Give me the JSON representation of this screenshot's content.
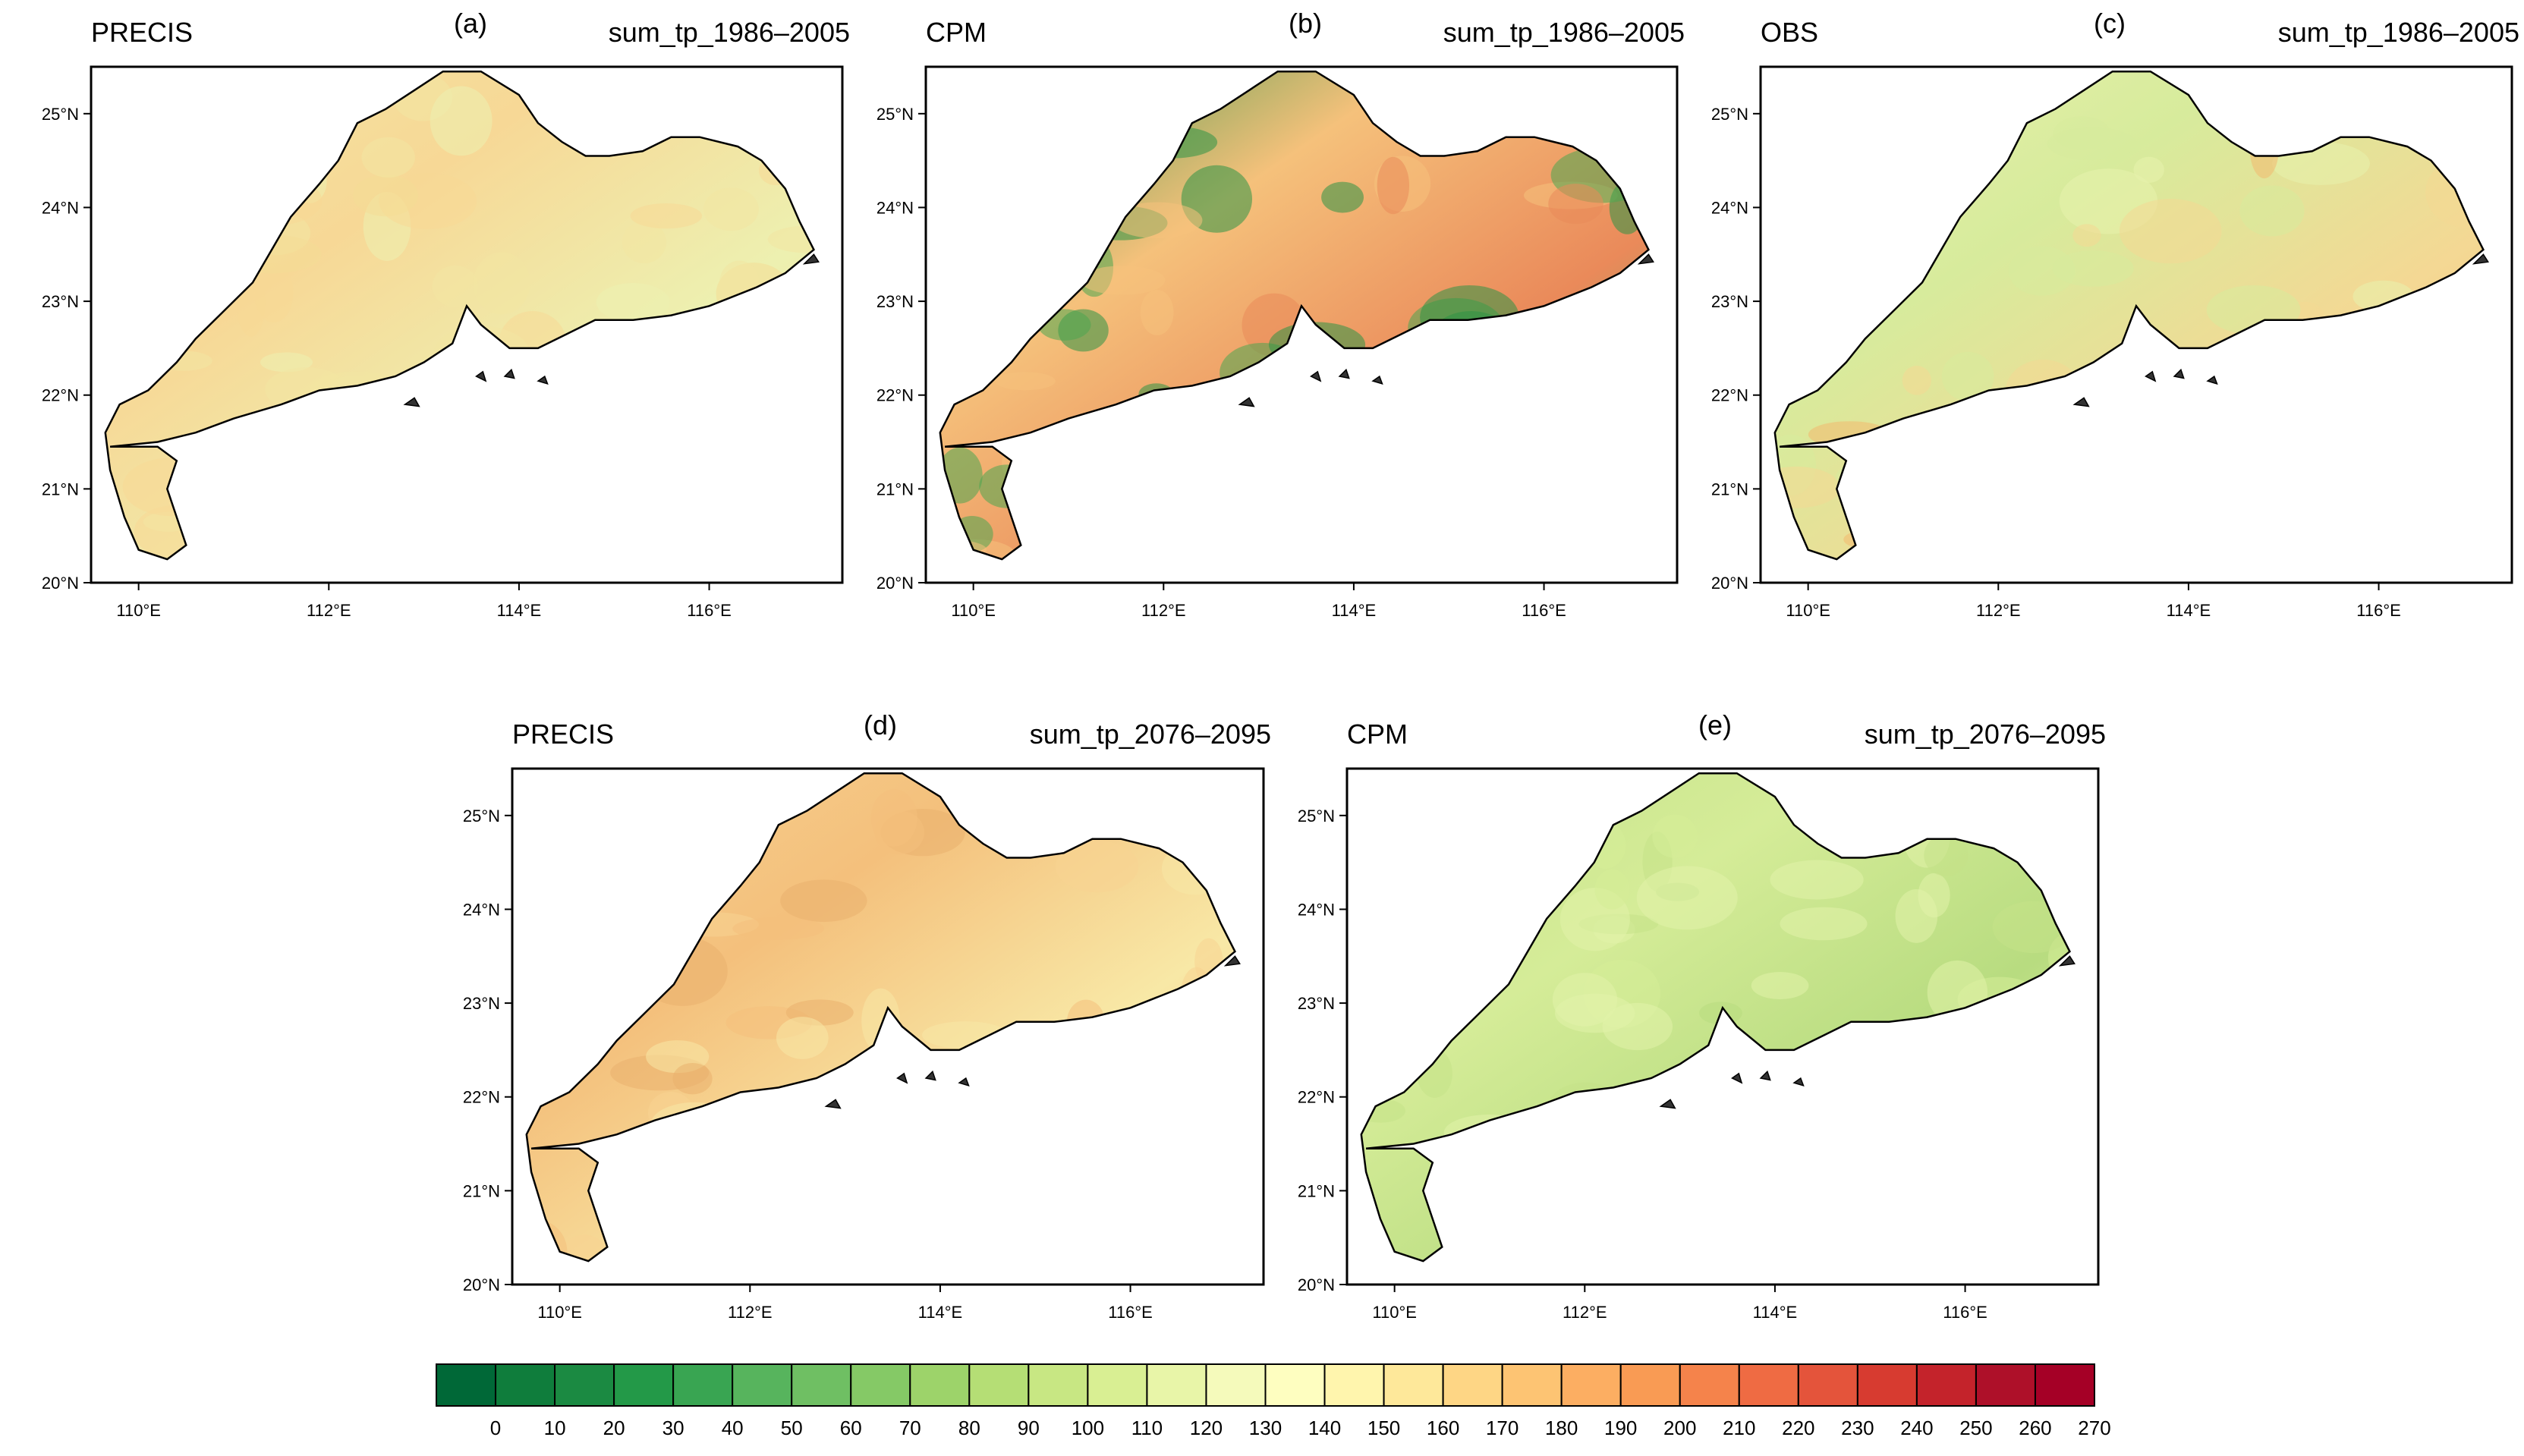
{
  "colors": {
    "scale": [
      "#006837",
      "#0f7d3c",
      "#1b8a42",
      "#239948",
      "#39a552",
      "#57b45d",
      "#6fbf63",
      "#85c966",
      "#9dd36a",
      "#b5de75",
      "#c8e783",
      "#d9ef93",
      "#e8f5a8",
      "#f5fabb",
      "#fefec0",
      "#fff5ad",
      "#fee89a",
      "#fed685",
      "#fdc473",
      "#fcae62",
      "#f99b54",
      "#f5834b",
      "#ef6b43",
      "#e4543b",
      "#d73b30",
      "#c4232b",
      "#ae1029",
      "#a50026"
    ],
    "panel_fill": {
      "a": [
        "#f2e6a3",
        "#f7d896",
        "#edf0b0",
        "#f4dd95"
      ],
      "b": [
        "#2e9346",
        "#f5c17b",
        "#ea8a5a",
        "#4ca650"
      ],
      "c": [
        "#e8f2ad",
        "#d7eb9c",
        "#f4d894",
        "#f2b96f"
      ],
      "d": [
        "#f7d392",
        "#f4c07c",
        "#f8e8a6",
        "#eab06d"
      ],
      "e": [
        "#c5e289",
        "#d5ec98",
        "#b8dc80",
        "#e2f2aa"
      ]
    }
  },
  "axes": {
    "lon_range": [
      109.5,
      117.4
    ],
    "lat_range": [
      20.0,
      25.5
    ],
    "lon_ticks": [
      "110°E",
      "112°E",
      "114°E",
      "116°E"
    ],
    "lat_ticks": [
      "20°N",
      "21°N",
      "22°N",
      "23°N",
      "24°N",
      "25°N"
    ],
    "lon_values": [
      110,
      112,
      114,
      116
    ],
    "lat_values": [
      20,
      21,
      22,
      23,
      24,
      25
    ]
  },
  "panels": [
    {
      "id": "a",
      "model": "PRECIS",
      "letter": "(a)",
      "variable": "sum_tp_1986–2005"
    },
    {
      "id": "b",
      "model": "CPM",
      "letter": "(b)",
      "variable": "sum_tp_1986–2005"
    },
    {
      "id": "c",
      "model": "OBS",
      "letter": "(c)",
      "variable": "sum_tp_1986–2005"
    },
    {
      "id": "d",
      "model": "PRECIS",
      "letter": "(d)",
      "variable": "sum_tp_2076–2095"
    },
    {
      "id": "e",
      "model": "CPM",
      "letter": "(e)",
      "variable": "sum_tp_2076–2095"
    }
  ],
  "colorbar": {
    "labels": [
      "0",
      "10",
      "20",
      "30",
      "40",
      "50",
      "60",
      "70",
      "80",
      "90",
      "100",
      "110",
      "120",
      "130",
      "140",
      "150",
      "160",
      "170",
      "180",
      "190",
      "200",
      "210",
      "220",
      "230",
      "240",
      "250",
      "260",
      "270"
    ]
  }
}
